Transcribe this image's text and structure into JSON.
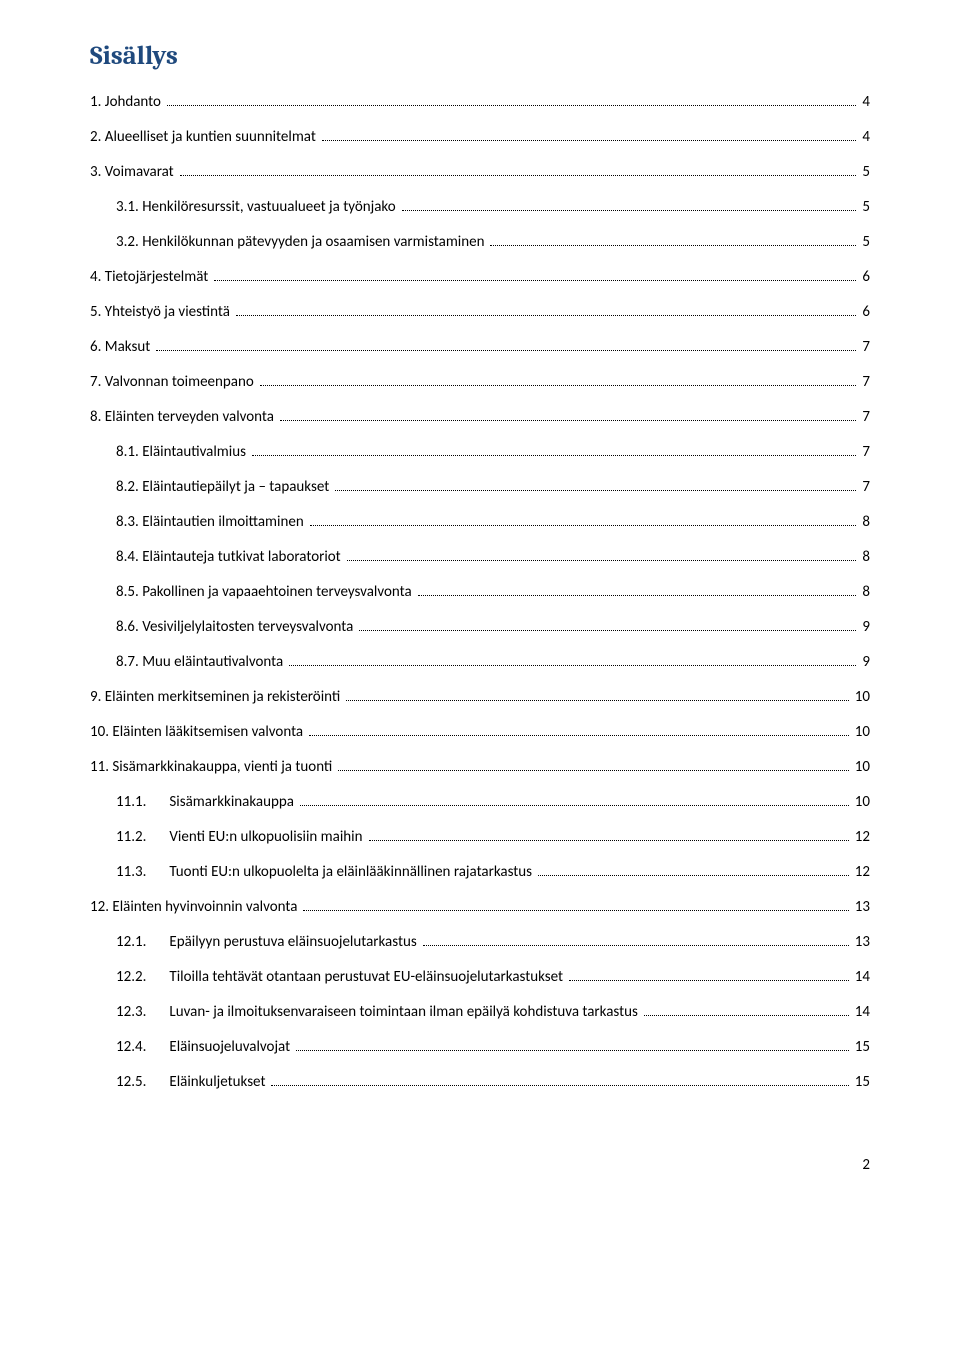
{
  "heading": {
    "text": "Sisällys",
    "color": "#1f497d",
    "font_size_pt": 20
  },
  "toc": [
    {
      "indent": 0,
      "num": "1.",
      "label": "Johdanto",
      "page": "4",
      "wide": false
    },
    {
      "indent": 0,
      "num": "2.",
      "label": "Alueelliset ja kuntien suunnitelmat",
      "page": "4",
      "wide": false
    },
    {
      "indent": 0,
      "num": "3.",
      "label": "Voimavarat",
      "page": "5",
      "wide": false
    },
    {
      "indent": 1,
      "num": "3.1.",
      "label": "Henkilöresurssit, vastuualueet ja työnjako",
      "page": "5",
      "wide": false
    },
    {
      "indent": 1,
      "num": "3.2.",
      "label": "Henkilökunnan pätevyyden ja osaamisen varmistaminen",
      "page": "5",
      "wide": false
    },
    {
      "indent": 0,
      "num": "4.",
      "label": "Tietojärjestelmät",
      "page": "6",
      "wide": false
    },
    {
      "indent": 0,
      "num": "5.",
      "label": "Yhteistyö ja viestintä",
      "page": "6",
      "wide": false
    },
    {
      "indent": 0,
      "num": "6.",
      "label": "Maksut",
      "page": "7",
      "wide": false
    },
    {
      "indent": 0,
      "num": "7.",
      "label": "Valvonnan toimeenpano",
      "page": "7",
      "wide": false
    },
    {
      "indent": 0,
      "num": "8.",
      "label": "Eläinten terveyden valvonta",
      "page": "7",
      "wide": false
    },
    {
      "indent": 1,
      "num": "8.1.",
      "label": "Eläintautivalmius",
      "page": "7",
      "wide": false
    },
    {
      "indent": 1,
      "num": "8.2.",
      "label": "Eläintautiepäilyt ja – tapaukset",
      "page": "7",
      "wide": false
    },
    {
      "indent": 1,
      "num": "8.3.",
      "label": "Eläintautien ilmoittaminen",
      "page": "8",
      "wide": false
    },
    {
      "indent": 1,
      "num": "8.4.",
      "label": "Eläintauteja tutkivat laboratoriot",
      "page": "8",
      "wide": false
    },
    {
      "indent": 1,
      "num": "8.5.",
      "label": "Pakollinen ja vapaaehtoinen terveysvalvonta",
      "page": "8",
      "wide": false
    },
    {
      "indent": 1,
      "num": "8.6.",
      "label": "Vesiviljelylaitosten terveysvalvonta",
      "page": "9",
      "wide": false
    },
    {
      "indent": 1,
      "num": "8.7.",
      "label": "Muu eläintautivalvonta",
      "page": "9",
      "wide": false
    },
    {
      "indent": 0,
      "num": "9.",
      "label": "Eläinten merkitseminen ja rekisteröinti",
      "page": "10",
      "wide": false
    },
    {
      "indent": 0,
      "num": "10.",
      "label": "Eläinten lääkitsemisen valvonta",
      "page": "10",
      "wide": false
    },
    {
      "indent": 0,
      "num": "11.",
      "label": "Sisämarkkinakauppa, vienti ja tuonti",
      "page": "10",
      "wide": false
    },
    {
      "indent": 2,
      "num": "11.1.",
      "label": "Sisämarkkinakauppa",
      "page": "10",
      "wide": true
    },
    {
      "indent": 2,
      "num": "11.2.",
      "label": "Vienti EU:n ulkopuolisiin maihin",
      "page": "12",
      "wide": true
    },
    {
      "indent": 2,
      "num": "11.3.",
      "label": "Tuonti EU:n ulkopuolelta ja eläinlääkinnällinen rajatarkastus",
      "page": "12",
      "wide": true
    },
    {
      "indent": 0,
      "num": "12.",
      "label": "Eläinten hyvinvoinnin valvonta",
      "page": "13",
      "wide": false
    },
    {
      "indent": 2,
      "num": "12.1.",
      "label": "Epäilyyn perustuva eläinsuojelutarkastus",
      "page": "13",
      "wide": true
    },
    {
      "indent": 2,
      "num": "12.2.",
      "label": "Tiloilla tehtävät otantaan perustuvat EU-eläinsuojelutarkastukset",
      "page": "14",
      "wide": true
    },
    {
      "indent": 2,
      "num": "12.3.",
      "label": "Luvan- ja ilmoituksenvaraiseen toimintaan ilman epäilyä kohdistuva tarkastus",
      "page": "14",
      "wide": true
    },
    {
      "indent": 2,
      "num": "12.4.",
      "label": "Eläinsuojeluvalvojat",
      "page": "15",
      "wide": true
    },
    {
      "indent": 2,
      "num": "12.5.",
      "label": "Eläinkuljetukset",
      "page": "15",
      "wide": true
    }
  ],
  "page_number": "2",
  "text_color": "#000000",
  "background_color": "#ffffff"
}
